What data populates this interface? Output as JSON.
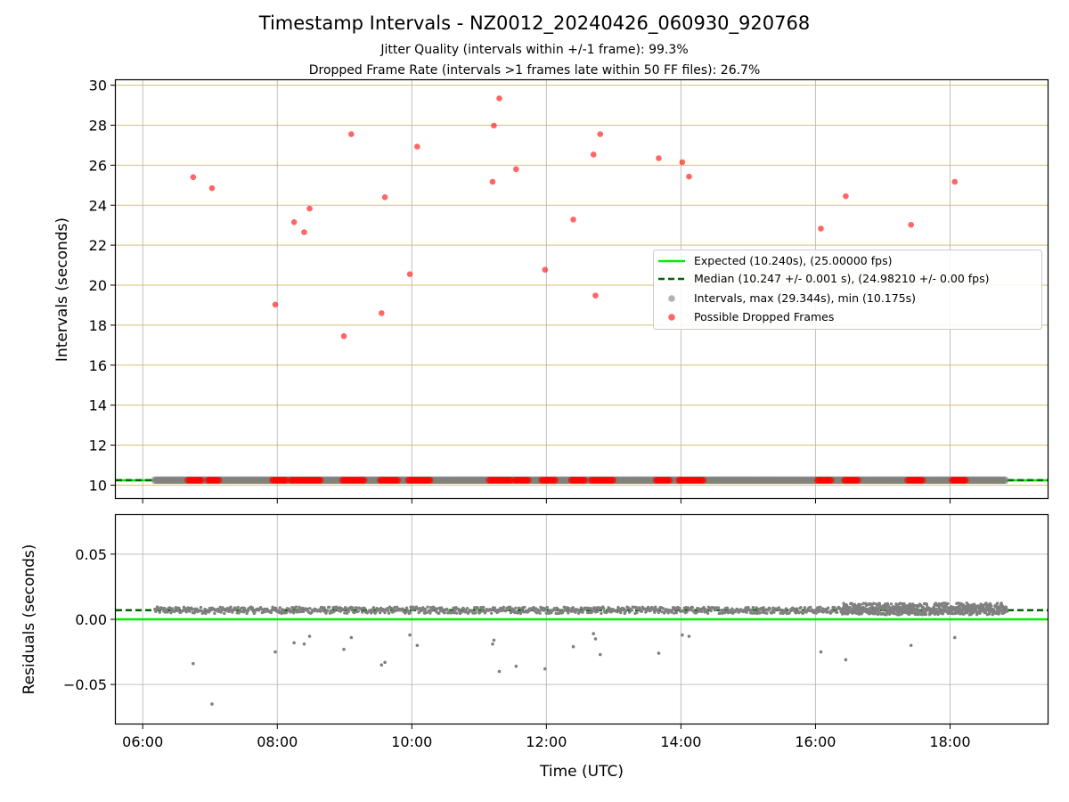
{
  "title": "Timestamp Intervals - NZ0012_20240426_060930_920768",
  "subtitle_1": "Jitter Quality (intervals within +/-1 frame): 99.3%",
  "subtitle_2": "Dropped Frame Rate (intervals >1 frames late within 50 FF files): 26.7%",
  "colors": {
    "expected": "#00ee00",
    "median": "#006400",
    "intervals": "#808080",
    "dropped": "#ff0000",
    "hgrid_top": "#d2b55b",
    "grid": "#b0b0b0"
  },
  "chart_data": [
    {
      "type": "scatter",
      "ylabel": "Intervals (seconds)",
      "x_unit": "hours UTC",
      "xlim": [
        5.6,
        19.45
      ],
      "ylim": [
        9.35,
        30.25
      ],
      "x_ticks": [
        6,
        8,
        10,
        12,
        14,
        16,
        18
      ],
      "x_tick_labels": [
        "06:00",
        "08:00",
        "10:00",
        "12:00",
        "14:00",
        "16:00",
        "18:00"
      ],
      "y_ticks": [
        10,
        12,
        14,
        16,
        18,
        20,
        22,
        24,
        26,
        28,
        30
      ],
      "y_tick_labels": [
        "10",
        "12",
        "14",
        "16",
        "18",
        "20",
        "22",
        "24",
        "26",
        "28",
        "30"
      ],
      "grid": true,
      "legend_position": "center-right",
      "expected_value": 10.24,
      "median_value": 10.247,
      "interval_range_x": [
        6.18,
        18.82
      ],
      "interval_value": 10.247,
      "series": [
        {
          "name": "Expected (10.240s), (25.00000 fps)",
          "kind": "hline",
          "y": 10.24
        },
        {
          "name": "Median (10.247 +/- 0.001 s), (24.98210 +/- 0.00 fps)",
          "kind": "hline-dashed",
          "y": 10.247
        },
        {
          "name": "Intervals, max (29.344s), min (10.175s)",
          "kind": "scatter-band"
        },
        {
          "name": "Possible Dropped Frames",
          "kind": "scatter",
          "points": [
            [
              6.75,
              25.4
            ],
            [
              7.03,
              24.85
            ],
            [
              7.97,
              19.03
            ],
            [
              8.25,
              23.15
            ],
            [
              8.4,
              22.65
            ],
            [
              8.48,
              23.83
            ],
            [
              8.99,
              17.45
            ],
            [
              9.1,
              27.55
            ],
            [
              9.55,
              18.6
            ],
            [
              9.6,
              24.4
            ],
            [
              9.97,
              20.55
            ],
            [
              10.08,
              26.93
            ],
            [
              11.2,
              25.17
            ],
            [
              11.22,
              27.98
            ],
            [
              11.3,
              29.34
            ],
            [
              11.55,
              25.8
            ],
            [
              11.98,
              20.77
            ],
            [
              12.4,
              23.28
            ],
            [
              12.7,
              26.53
            ],
            [
              12.73,
              19.48
            ],
            [
              12.8,
              27.55
            ],
            [
              13.67,
              26.35
            ],
            [
              14.02,
              26.15
            ],
            [
              14.12,
              25.43
            ],
            [
              16.08,
              22.83
            ],
            [
              16.45,
              24.45
            ],
            [
              17.42,
              23.02
            ],
            [
              18.07,
              25.17
            ]
          ],
          "baseline_clusters": [
            [
              6.67,
              6.87
            ],
            [
              6.97,
              7.13
            ],
            [
              7.93,
              8.13
            ],
            [
              8.2,
              8.65
            ],
            [
              8.97,
              9.3
            ],
            [
              9.53,
              9.8
            ],
            [
              9.95,
              10.27
            ],
            [
              11.15,
              11.47
            ],
            [
              11.53,
              11.73
            ],
            [
              11.93,
              12.13
            ],
            [
              12.37,
              12.57
            ],
            [
              12.67,
              13.0
            ],
            [
              13.63,
              13.83
            ],
            [
              13.97,
              14.33
            ],
            [
              16.03,
              16.23
            ],
            [
              16.43,
              16.63
            ],
            [
              17.37,
              17.6
            ],
            [
              18.03,
              18.23
            ]
          ]
        }
      ]
    },
    {
      "type": "scatter",
      "xlabel": "Time (UTC)",
      "ylabel": "Residuals (seconds)",
      "xlim": [
        5.6,
        19.45
      ],
      "ylim": [
        -0.08,
        0.08
      ],
      "x_ticks": [
        6,
        8,
        10,
        12,
        14,
        16,
        18
      ],
      "x_tick_labels": [
        "06:00",
        "08:00",
        "10:00",
        "12:00",
        "14:00",
        "16:00",
        "18:00"
      ],
      "y_ticks": [
        -0.05,
        0.0,
        0.05
      ],
      "y_tick_labels": [
        "−0.05",
        "0.00",
        "0.05"
      ],
      "grid": true,
      "expected_residual": 0.0,
      "median_residual": 0.007,
      "outliers": [
        [
          6.75,
          -0.034
        ],
        [
          7.03,
          -0.065
        ],
        [
          7.97,
          -0.025
        ],
        [
          8.25,
          -0.018
        ],
        [
          8.4,
          -0.019
        ],
        [
          8.48,
          -0.013
        ],
        [
          8.99,
          -0.023
        ],
        [
          9.1,
          -0.014
        ],
        [
          9.55,
          -0.035
        ],
        [
          9.6,
          -0.033
        ],
        [
          9.97,
          -0.012
        ],
        [
          10.08,
          -0.02
        ],
        [
          11.2,
          -0.019
        ],
        [
          11.22,
          -0.016
        ],
        [
          11.3,
          -0.04
        ],
        [
          11.55,
          -0.036
        ],
        [
          11.98,
          -0.038
        ],
        [
          12.4,
          -0.021
        ],
        [
          12.7,
          -0.011
        ],
        [
          12.73,
          -0.015
        ],
        [
          12.8,
          -0.027
        ],
        [
          13.67,
          -0.026
        ],
        [
          14.02,
          -0.012
        ],
        [
          14.12,
          -0.013
        ],
        [
          16.08,
          -0.025
        ],
        [
          16.45,
          -0.031
        ],
        [
          17.42,
          -0.02
        ],
        [
          18.07,
          -0.014
        ]
      ],
      "dense_ranges": [
        [
          6.18,
          18.82,
          0.007,
          0.0025
        ],
        [
          16.4,
          18.85,
          0.008,
          0.0045
        ]
      ]
    }
  ]
}
